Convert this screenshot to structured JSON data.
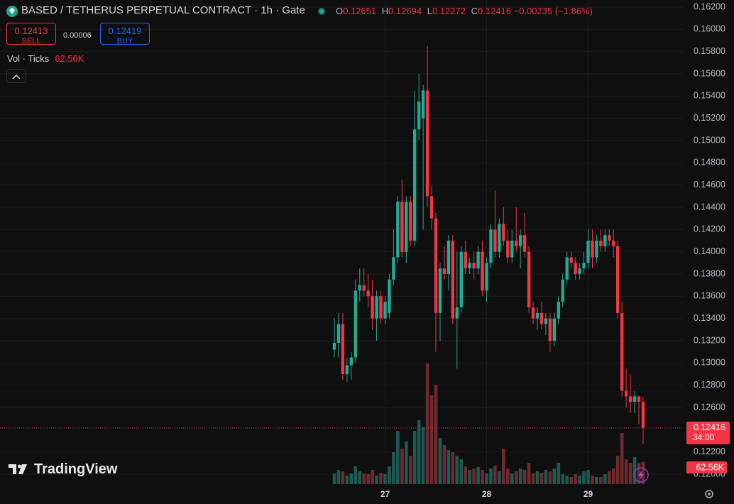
{
  "header": {
    "title": "BASED / TETHERUS PERPETUAL CONTRACT · 1h · Gate",
    "o": "O",
    "h": "H",
    "l": "L",
    "c": "C",
    "change": "−0.00235 (−1.86%)"
  },
  "trade": {
    "sell_price": "0.12413",
    "sell": "SELL",
    "spread": "0.00006",
    "buy_price": "0.12419",
    "buy": "BUY"
  },
  "brand": "TradingView",
  "chart_data": {
    "type": "candlestick",
    "categories": [
      null,
      null,
      null,
      null,
      null,
      null,
      null,
      null,
      null,
      null,
      null,
      null,
      "27",
      null,
      null,
      null,
      null,
      null,
      null,
      null,
      null,
      null,
      null,
      null,
      null,
      null,
      null,
      null,
      null,
      null,
      null,
      null,
      null,
      null,
      null,
      null,
      "28",
      null,
      null,
      null,
      null,
      null,
      null,
      null,
      null,
      null,
      null,
      null,
      null,
      null,
      null,
      null,
      null,
      null,
      null,
      null,
      null,
      null,
      null,
      null,
      "29",
      null,
      null,
      null,
      null,
      null,
      null,
      null,
      null,
      null,
      null,
      null,
      null,
      null
    ],
    "open": [
      0.1312,
      0.1318,
      0.1335,
      0.129,
      0.1298,
      0.1305,
      0.1365,
      0.137,
      0.1365,
      0.136,
      0.134,
      0.136,
      0.134,
      0.1345,
      0.1375,
      0.1395,
      0.1445,
      0.14,
      0.1445,
      0.141,
      0.151,
      0.152,
      0.1545,
      0.145,
      0.143,
      0.1345,
      0.1385,
      0.138,
      0.141,
      0.134,
      0.135,
      0.14,
      0.1385,
      0.139,
      0.1385,
      0.14,
      0.1365,
      0.139,
      0.142,
      0.14,
      0.1425,
      0.141,
      0.1395,
      0.141,
      0.1405,
      0.1415,
      0.14,
      0.135,
      0.134,
      0.1345,
      0.1335,
      0.134,
      0.132,
      0.134,
      0.1355,
      0.1375,
      0.1395,
      0.139,
      0.138,
      0.1385,
      0.139,
      0.141,
      0.1395,
      0.141,
      0.1405,
      0.1415,
      0.141,
      0.1405,
      0.1345,
      0.1275,
      0.127,
      0.1265,
      0.127,
      0.12651
    ],
    "high": [
      0.134,
      0.1345,
      0.1345,
      0.1305,
      0.131,
      0.1375,
      0.1385,
      0.1385,
      0.138,
      0.1375,
      0.1365,
      0.1365,
      0.136,
      0.138,
      0.142,
      0.145,
      0.1465,
      0.145,
      0.145,
      0.1545,
      0.156,
      0.155,
      0.1585,
      0.146,
      0.1435,
      0.139,
      0.1405,
      0.1415,
      0.1415,
      0.14,
      0.1405,
      0.141,
      0.1395,
      0.14,
      0.1405,
      0.141,
      0.1395,
      0.1425,
      0.1455,
      0.143,
      0.144,
      0.142,
      0.142,
      0.144,
      0.142,
      0.1435,
      0.1405,
      0.1355,
      0.135,
      0.1355,
      0.1345,
      0.1345,
      0.1345,
      0.136,
      0.138,
      0.14,
      0.14,
      0.1395,
      0.139,
      0.14,
      0.142,
      0.142,
      0.1415,
      0.142,
      0.142,
      0.142,
      0.142,
      0.141,
      0.1355,
      0.1295,
      0.129,
      0.1275,
      0.127,
      0.12694
    ],
    "low": [
      0.1305,
      0.1305,
      0.1285,
      0.1283,
      0.1285,
      0.13,
      0.1355,
      0.136,
      0.135,
      0.133,
      0.132,
      0.1335,
      0.1335,
      0.134,
      0.137,
      0.139,
      0.1395,
      0.139,
      0.1405,
      0.1405,
      0.15,
      0.142,
      0.144,
      0.142,
      0.131,
      0.132,
      0.1375,
      0.1365,
      0.1335,
      0.1295,
      0.1345,
      0.138,
      0.138,
      0.1375,
      0.138,
      0.136,
      0.1355,
      0.1385,
      0.1395,
      0.1395,
      0.1405,
      0.139,
      0.139,
      0.14,
      0.1385,
      0.1395,
      0.1345,
      0.1335,
      0.133,
      0.133,
      0.1325,
      0.131,
      0.1315,
      0.1335,
      0.135,
      0.137,
      0.1385,
      0.1375,
      0.1375,
      0.138,
      0.1385,
      0.1385,
      0.139,
      0.14,
      0.14,
      0.1405,
      0.1395,
      0.134,
      0.127,
      0.126,
      0.1255,
      0.1255,
      0.1245,
      0.12272
    ],
    "close": [
      0.1318,
      0.1335,
      0.129,
      0.1298,
      0.1305,
      0.1365,
      0.137,
      0.1365,
      0.136,
      0.134,
      0.136,
      0.134,
      0.1355,
      0.1375,
      0.1395,
      0.1445,
      0.14,
      0.1445,
      0.141,
      0.151,
      0.1535,
      0.1545,
      0.145,
      0.143,
      0.1345,
      0.1385,
      0.138,
      0.141,
      0.134,
      0.135,
      0.14,
      0.1385,
      0.139,
      0.1385,
      0.14,
      0.1365,
      0.139,
      0.142,
      0.14,
      0.1425,
      0.141,
      0.1395,
      0.141,
      0.1405,
      0.1415,
      0.14,
      0.135,
      0.134,
      0.1345,
      0.1335,
      0.134,
      0.132,
      0.134,
      0.1355,
      0.1375,
      0.1395,
      0.139,
      0.138,
      0.1385,
      0.139,
      0.141,
      0.1395,
      0.141,
      0.1405,
      0.1415,
      0.141,
      0.1405,
      0.1345,
      0.1275,
      0.127,
      0.1265,
      0.127,
      0.12651,
      0.12416
    ],
    "volume": {
      "name": "Vol · Ticks",
      "values": [
        30000,
        40000,
        36000,
        24000,
        30000,
        50000,
        36000,
        30000,
        28000,
        40000,
        24000,
        32000,
        28000,
        50000,
        90000,
        150000,
        100000,
        120000,
        80000,
        150000,
        180000,
        160000,
        340000,
        250000,
        280000,
        130000,
        110000,
        96000,
        90000,
        80000,
        70000,
        50000,
        40000,
        44000,
        48000,
        40000,
        30000,
        44000,
        52000,
        36000,
        100000,
        44000,
        30000,
        36000,
        44000,
        40000,
        60000,
        30000,
        36000,
        32000,
        40000,
        36000,
        44000,
        60000,
        28000,
        24000,
        20000,
        28000,
        24000,
        36000,
        40000,
        24000,
        20000,
        20000,
        28000,
        36000,
        44000,
        80000,
        144000,
        70000,
        60000,
        76000,
        60000,
        62560
      ],
      "value_labels": [
        null,
        null,
        null,
        null,
        null,
        null,
        null,
        null,
        null,
        null,
        null,
        null,
        null,
        null,
        null,
        null,
        null,
        null,
        null,
        null,
        null,
        null,
        null,
        null,
        null,
        null,
        null,
        null,
        null,
        null,
        null,
        null,
        null,
        null,
        null,
        null,
        null,
        null,
        null,
        null,
        null,
        null,
        null,
        null,
        null,
        null,
        null,
        null,
        null,
        null,
        null,
        null,
        null,
        null,
        null,
        null,
        null,
        null,
        null,
        null,
        null,
        null,
        null,
        null,
        null,
        null,
        null,
        null,
        null,
        null,
        null,
        null,
        null,
        "62.56K"
      ],
      "up_color": "#1c5a52",
      "down_color": "#6e2a2f"
    },
    "up_color": "#22ab94",
    "down_color": "#f23645",
    "countdown": "34:00",
    "ylim": [
      0.12,
      0.162
    ],
    "yticks": [
      {
        "value": 0.162,
        "label": "0.16200"
      },
      {
        "value": 0.16,
        "label": "0.16000"
      },
      {
        "value": 0.158,
        "label": "0.15800"
      },
      {
        "value": 0.156,
        "label": "0.15600"
      },
      {
        "value": 0.154,
        "label": "0.15400"
      },
      {
        "value": 0.152,
        "label": "0.15200"
      },
      {
        "value": 0.15,
        "label": "0.15000"
      },
      {
        "value": 0.148,
        "label": "0.14800"
      },
      {
        "value": 0.146,
        "label": "0.14600"
      },
      {
        "value": 0.144,
        "label": "0.14400"
      },
      {
        "value": 0.142,
        "label": "0.14200"
      },
      {
        "value": 0.14,
        "label": "0.14000"
      },
      {
        "value": 0.138,
        "label": "0.13800"
      },
      {
        "value": 0.136,
        "label": "0.13600"
      },
      {
        "value": 0.134,
        "label": "0.13400"
      },
      {
        "value": 0.132,
        "label": "0.13200"
      },
      {
        "value": 0.13,
        "label": "0.13000"
      },
      {
        "value": 0.128,
        "label": "0.12800"
      },
      {
        "value": 0.126,
        "label": "0.12600"
      },
      {
        "value": 0.122,
        "label": "0.12200"
      },
      {
        "value": 0.12,
        "label": "0.12000"
      }
    ],
    "grid": true
  }
}
